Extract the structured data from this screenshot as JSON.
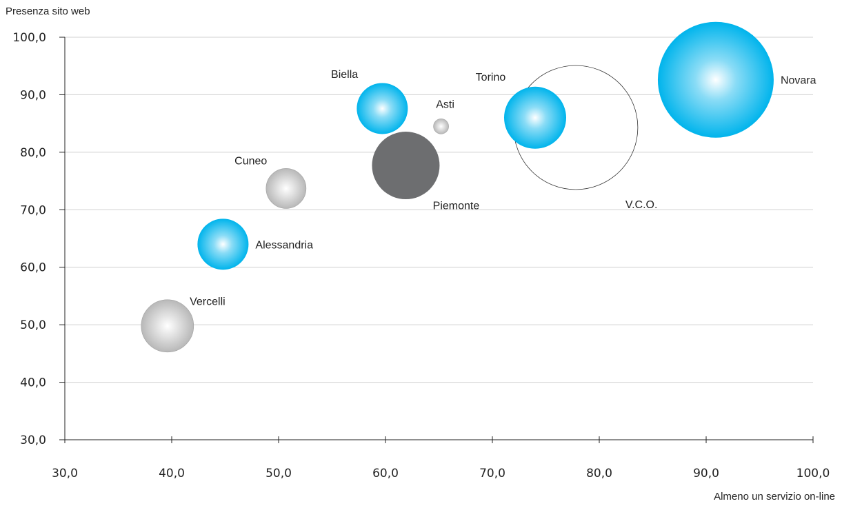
{
  "chart_data": {
    "type": "scatter",
    "subtype": "bubble",
    "xlabel": "Almeno un servizio on-line",
    "ylabel": "Presenza sito web",
    "xlim": [
      30,
      100
    ],
    "ylim": [
      30,
      100
    ],
    "x_ticks": [
      "30,0",
      "40,0",
      "50,0",
      "60,0",
      "70,0",
      "80,0",
      "90,0",
      "100,0"
    ],
    "y_ticks": [
      "30,0",
      "40,0",
      "50,0",
      "60,0",
      "70,0",
      "80,0",
      "90,0",
      "100,0"
    ],
    "grid": "horizontal",
    "points": [
      {
        "label": "Vercelli",
        "x": 39.6,
        "y": 49.8,
        "size": 38,
        "style": "gray-gradient",
        "label_pos": "upper-right"
      },
      {
        "label": "Alessandria",
        "x": 44.8,
        "y": 64.0,
        "size": 37,
        "style": "blue-gradient",
        "label_pos": "right"
      },
      {
        "label": "Cuneo",
        "x": 50.7,
        "y": 73.7,
        "size": 29,
        "style": "gray-gradient",
        "label_pos": "upper-left"
      },
      {
        "label": "Biella",
        "x": 59.7,
        "y": 87.6,
        "size": 37,
        "style": "blue-gradient",
        "label_pos": "upper-left"
      },
      {
        "label": "Asti",
        "x": 65.2,
        "y": 84.5,
        "size": 11,
        "style": "gray-gradient",
        "label_pos": "above"
      },
      {
        "label": "Piemonte",
        "x": 61.9,
        "y": 77.7,
        "size": 49,
        "style": "dark-solid",
        "label_pos": "lower-right"
      },
      {
        "label": "Torino",
        "x": 74.0,
        "y": 86.0,
        "size": 45,
        "style": "blue-gradient",
        "label_pos": "upper-left"
      },
      {
        "label": "V.C.O.",
        "x": 77.8,
        "y": 84.3,
        "size": 90,
        "style": "outline",
        "label_pos": "lower-right"
      },
      {
        "label": "Novara",
        "x": 90.9,
        "y": 92.6,
        "size": 84,
        "style": "blue-gradient",
        "label_pos": "right"
      }
    ],
    "colors": {
      "blue_outer": "#00b4ec",
      "blue_inner": "#ffffff",
      "gray_outer": "#b8b8b8",
      "gray_inner": "#ffffff",
      "dark_fill": "#6d6e70",
      "outline_stroke": "#333333",
      "gridline": "#d0d0d0",
      "axis": "#222222"
    }
  }
}
